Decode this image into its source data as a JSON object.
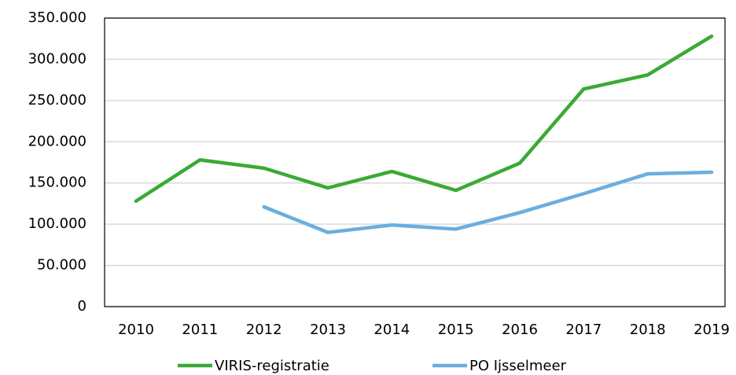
{
  "chart_data": {
    "type": "line",
    "categories": [
      "2010",
      "2011",
      "2012",
      "2013",
      "2014",
      "2015",
      "2016",
      "2017",
      "2018",
      "2019"
    ],
    "series": [
      {
        "name": "VIRIS-registratie",
        "color": "#3aaa35",
        "values": [
          128000,
          178000,
          168000,
          144000,
          164000,
          141000,
          174000,
          264000,
          281000,
          328000
        ]
      },
      {
        "name": "PO Ijsselmeer",
        "color": "#6aaee0",
        "values": [
          null,
          null,
          121000,
          90000,
          99000,
          94000,
          114000,
          137000,
          161000,
          163000
        ]
      }
    ],
    "ylim": [
      0,
      350000
    ],
    "yticks": [
      0,
      {
        "value": 50000,
        "label": "50.000"
      },
      {
        "value": 100000,
        "label": "100.000"
      },
      {
        "value": 150000,
        "label": "150.000"
      },
      {
        "value": 200000,
        "label": "200.000"
      },
      {
        "value": 250000,
        "label": "250.000"
      },
      {
        "value": 300000,
        "label": "300.000"
      },
      {
        "value": 350000,
        "label": "350.000"
      }
    ],
    "grid": true,
    "legend": "bottom"
  }
}
